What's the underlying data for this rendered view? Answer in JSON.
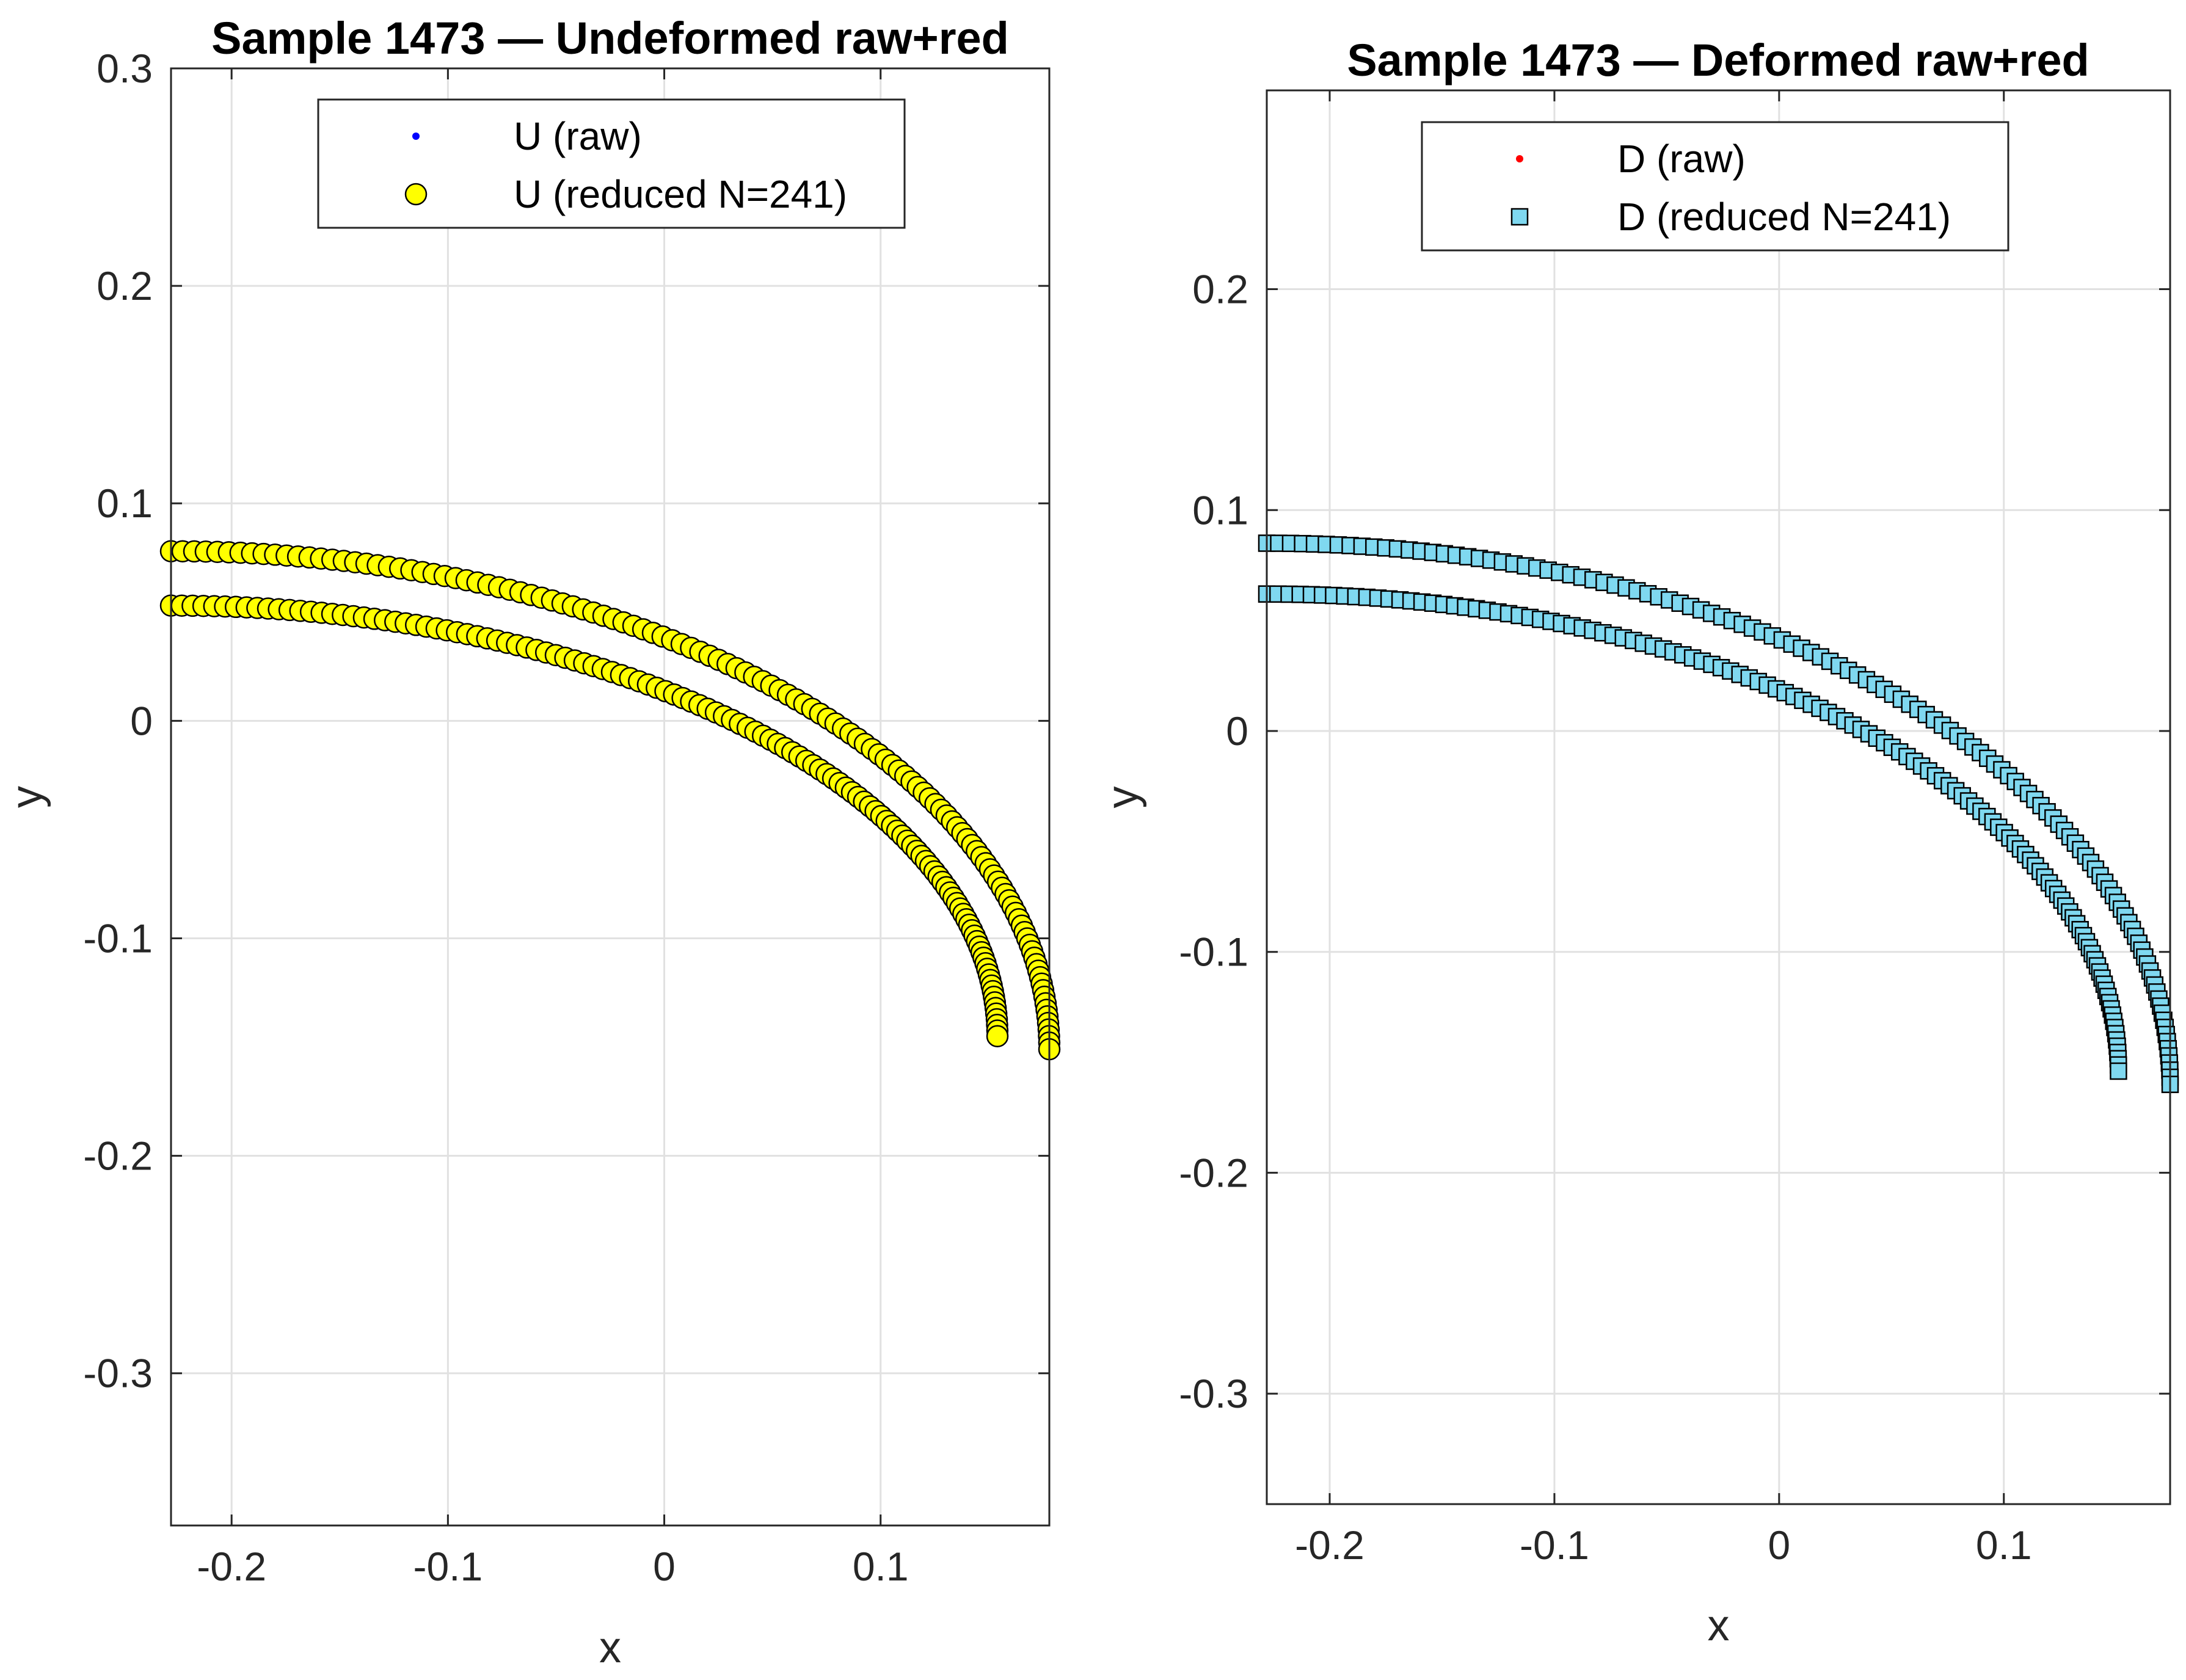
{
  "chart_data": [
    {
      "type": "scatter",
      "title": "Sample 1473 — Undeformed raw+red",
      "xlabel": "x",
      "ylabel": "y",
      "xlim": [
        -0.228,
        0.178
      ],
      "ylim": [
        -0.37,
        0.3
      ],
      "xticks": [
        -0.2,
        -0.1,
        0,
        0.1
      ],
      "xtick_labels": [
        "-0.2",
        "-0.1",
        "0",
        "0.1"
      ],
      "yticks": [
        -0.3,
        -0.2,
        -0.1,
        0,
        0.1,
        0.2,
        0.3
      ],
      "ytick_labels": [
        "-0.3",
        "-0.2",
        "-0.1",
        "0",
        "0.1",
        "0.2",
        "0.3"
      ],
      "grid": true,
      "legend_position": "top-center",
      "series": [
        {
          "name": "U (raw)",
          "marker": "dot",
          "color": "#0000ff",
          "visible_in_legend_only": true
        },
        {
          "name": "U (reduced N=241)",
          "marker": "circle",
          "color": "#ffff00",
          "edge": "#000000",
          "curves": [
            {
              "label": "outer",
              "x_start": -0.228,
              "x_end": 0.178,
              "y_top": 0.078,
              "y_bottom": -0.151,
              "points": 120
            },
            {
              "label": "inner",
              "x_start": -0.228,
              "x_end": 0.154,
              "y_top": 0.053,
              "y_bottom": -0.145,
              "points": 121
            }
          ]
        }
      ]
    },
    {
      "type": "scatter",
      "title": "Sample 1473 — Deformed raw+red",
      "xlabel": "x",
      "ylabel": "y",
      "xlim": [
        -0.228,
        0.174
      ],
      "ylim": [
        -0.35,
        0.29
      ],
      "xticks": [
        -0.2,
        -0.1,
        0,
        0.1
      ],
      "xtick_labels": [
        "-0.2",
        "-0.1",
        "0",
        "0.1"
      ],
      "yticks": [
        -0.3,
        -0.2,
        -0.1,
        0,
        0.1,
        0.2
      ],
      "ytick_labels": [
        "-0.3",
        "-0.2",
        "-0.1",
        "0",
        "0.1",
        "0.2"
      ],
      "grid": true,
      "legend_position": "top-center",
      "series": [
        {
          "name": "D (raw)",
          "marker": "dot",
          "color": "#ff0000",
          "visible_in_legend_only": true
        },
        {
          "name": "D (reduced N=241)",
          "marker": "square",
          "color": "#7fd8f0",
          "edge": "#000000",
          "curves": [
            {
              "label": "outer",
              "x_start": -0.228,
              "x_end": 0.174,
              "y_top": 0.085,
              "y_bottom": -0.16,
              "points": 120
            },
            {
              "label": "inner",
              "x_start": -0.228,
              "x_end": 0.151,
              "y_top": 0.062,
              "y_bottom": -0.154,
              "points": 121
            }
          ]
        }
      ]
    }
  ]
}
